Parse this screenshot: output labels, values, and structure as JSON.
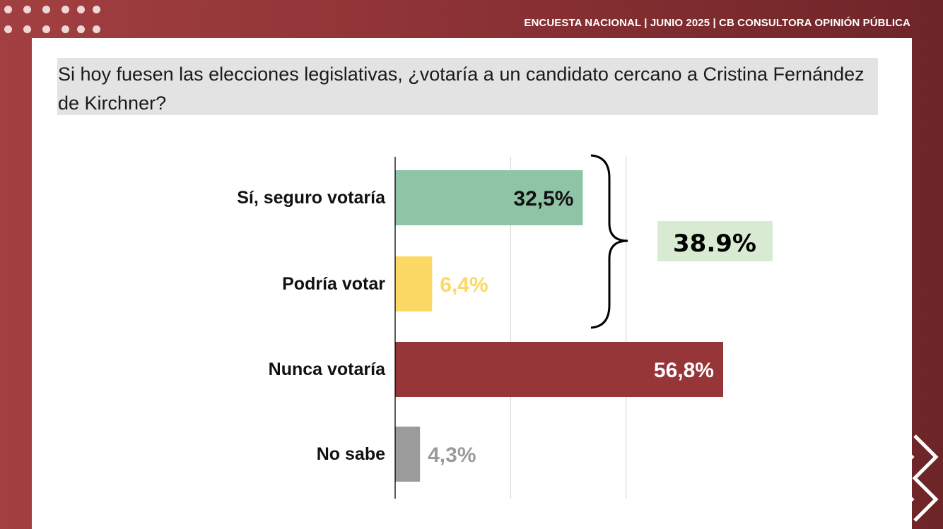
{
  "header": {
    "text": "ENCUESTA NACIONAL | JUNIO 2025 | CB CONSULTORA OPINIÓN PÚBLICA"
  },
  "question": {
    "text": "Si hoy fuesen las elecciones legislativas, ¿votaría a un candidato cercano a Cristina Fernández de Kirchner?"
  },
  "chart_data": {
    "type": "bar",
    "orientation": "horizontal",
    "categories": [
      "Sí, seguro votaría",
      "Podría votar",
      "Nunca votaría",
      "No sabe"
    ],
    "values": [
      32.5,
      6.4,
      56.8,
      4.3
    ],
    "value_labels": [
      "32,5%",
      "6,4%",
      "56,8%",
      "4,3%"
    ],
    "colors": [
      "#8fc4a7",
      "#fcd865",
      "#963639",
      "#9b9b9b"
    ],
    "label_colors": [
      "#111111",
      "#fcd865",
      "#ffffff",
      "#9b9b9b"
    ],
    "labels_inside": [
      true,
      false,
      true,
      false
    ],
    "xlim": [
      0,
      60
    ],
    "grid": true,
    "annotation": {
      "text": "38.9%",
      "groups": [
        "Sí, seguro votaría",
        "Podría votar"
      ],
      "background": "#d9ead3"
    }
  }
}
